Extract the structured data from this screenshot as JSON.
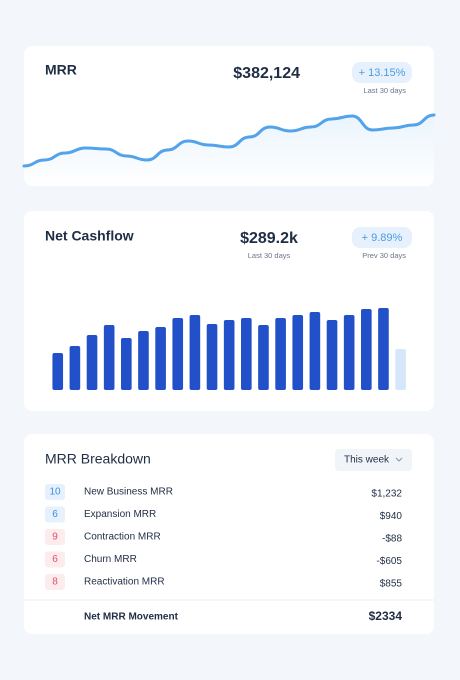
{
  "chart_data": [
    {
      "type": "line",
      "title": "MRR",
      "value": "$382,124",
      "change": "+ 13.15%",
      "period": "Last 30 days",
      "values": [
        20,
        26,
        33,
        38,
        37,
        30,
        26,
        36,
        45,
        41,
        39,
        49,
        59,
        55,
        59,
        67,
        70,
        56,
        58,
        61,
        71
      ],
      "ylim": [
        0,
        80
      ],
      "color": "#52a3ea"
    },
    {
      "type": "bar",
      "title": "Net Cashflow",
      "value": "$289.2k",
      "value_period": "Last 30 days",
      "change": "+ 9.89%",
      "period": "Prev 30 days",
      "values": [
        37,
        44,
        55,
        65,
        52,
        59,
        63,
        72,
        75,
        66,
        70,
        72,
        65,
        72,
        75,
        78,
        70,
        75,
        81,
        82,
        41
      ],
      "colors": [
        "#2250c8",
        "#2250c8",
        "#2250c8",
        "#2250c8",
        "#2250c8",
        "#2250c8",
        "#2250c8",
        "#2250c8",
        "#2250c8",
        "#2250c8",
        "#2250c8",
        "#2250c8",
        "#2250c8",
        "#2250c8",
        "#2250c8",
        "#2250c8",
        "#2250c8",
        "#2250c8",
        "#2250c8",
        "#2250c8",
        "#d7e7fb"
      ],
      "ylim": [
        0,
        100
      ]
    }
  ],
  "breakdown": {
    "title": "MRR Breakdown",
    "filter": "This week",
    "rows": [
      {
        "count": "10",
        "label": "New Business MRR",
        "amount": "$1,232",
        "tone": "blue"
      },
      {
        "count": "6",
        "label": "Expansion MRR",
        "amount": "$940",
        "tone": "blue"
      },
      {
        "count": "9",
        "label": "Contraction MRR",
        "amount": "-$88",
        "tone": "red"
      },
      {
        "count": "6",
        "label": "Churn MRR",
        "amount": "-$605",
        "tone": "red"
      },
      {
        "count": "8",
        "label": "Reactivation MRR",
        "amount": "$855",
        "tone": "red"
      }
    ],
    "total_label": "Net MRR Movement",
    "total": "$2334"
  }
}
